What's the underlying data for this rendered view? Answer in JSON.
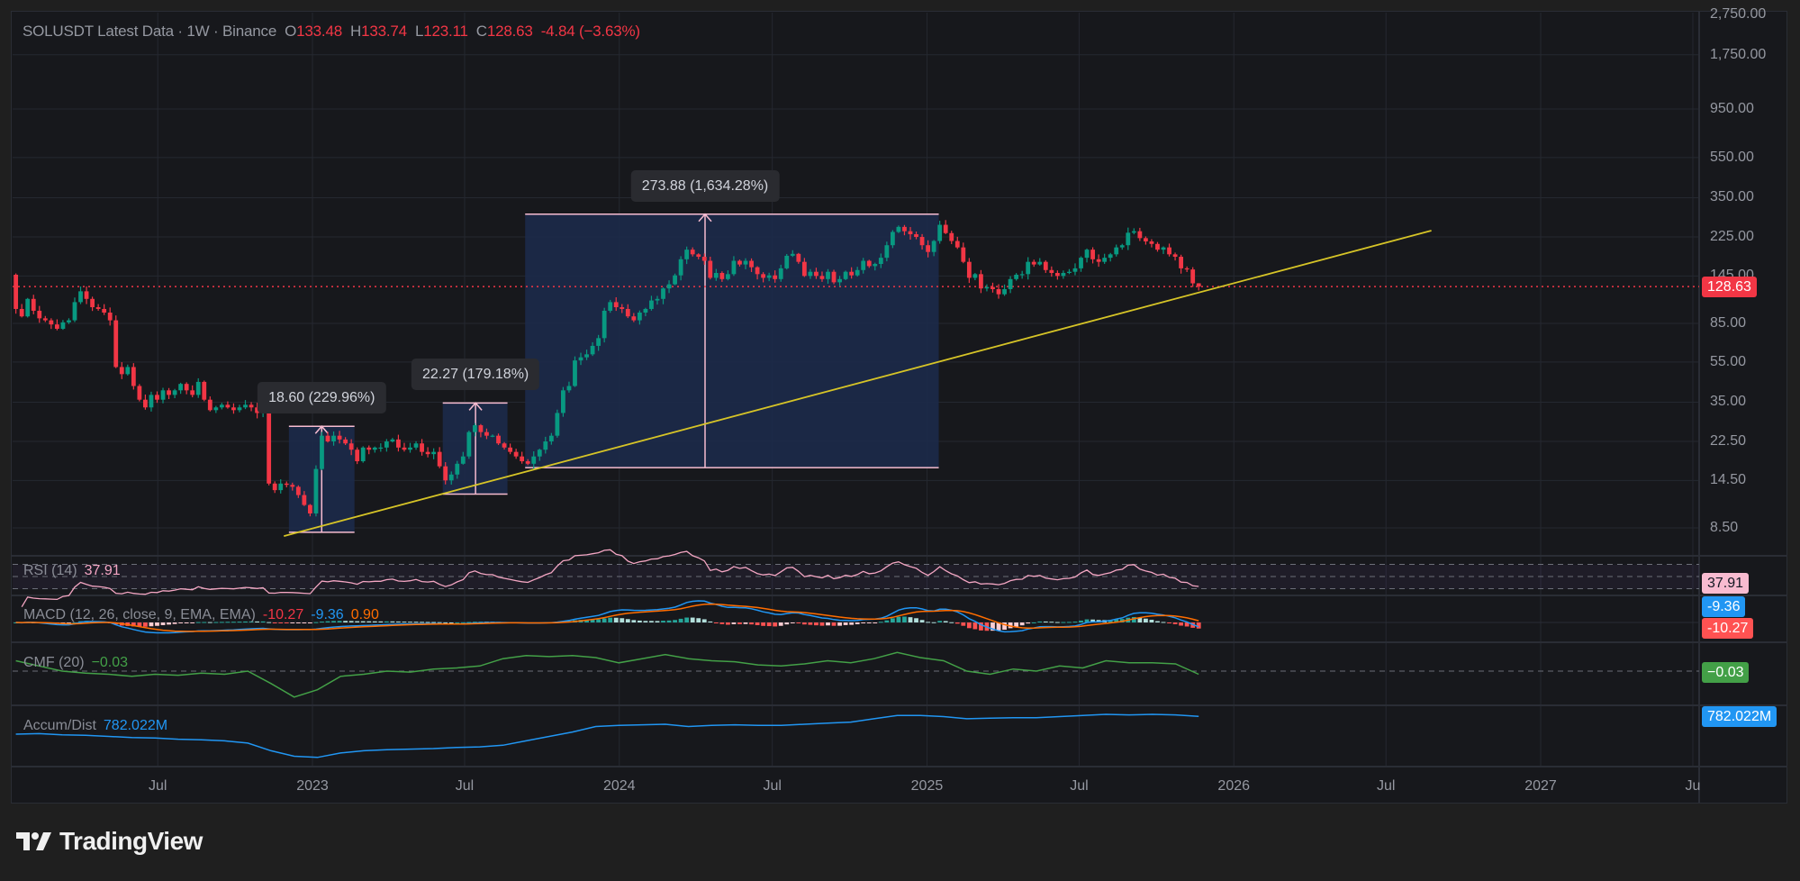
{
  "header": {
    "symbol": "SOLUSDT",
    "title": "Latest Data",
    "sep": "·",
    "interval": "1W",
    "exchange": "Binance",
    "open_label": "O",
    "open": "133.48",
    "high_label": "H",
    "high": "133.74",
    "low_label": "L",
    "low": "123.11",
    "close_label": "C",
    "close": "128.63",
    "change": "-4.84 (−3.63%)"
  },
  "colors": {
    "up": "#089981",
    "down": "#f23645",
    "grid": "#252830",
    "measure_fill": "#1c2a4a",
    "measure_line": "#f7bcd0",
    "trendline": "#d6c427",
    "rsi": "#f4a6c3",
    "macd": "#2196f3",
    "signal": "#ff6d00",
    "cmf": "#43a047",
    "accum_dist": "#2196f3"
  },
  "price_axis": {
    "scale": "log",
    "ticks": [
      {
        "label": "2,750.00",
        "value": 2750
      },
      {
        "label": "1,750.00",
        "value": 1750
      },
      {
        "label": "950.00",
        "value": 950
      },
      {
        "label": "550.00",
        "value": 550
      },
      {
        "label": "350.00",
        "value": 350
      },
      {
        "label": "225.00",
        "value": 225
      },
      {
        "label": "145.00",
        "value": 145
      },
      {
        "label": "85.00",
        "value": 85
      },
      {
        "label": "55.00",
        "value": 55
      },
      {
        "label": "35.00",
        "value": 35
      },
      {
        "label": "22.50",
        "value": 22.5
      },
      {
        "label": "14.50",
        "value": 14.5
      },
      {
        "label": "8.50",
        "value": 8.5
      }
    ],
    "last_price": "128.63"
  },
  "time_axis": {
    "ticks": [
      {
        "label": "Jul",
        "date": "2022-07-01"
      },
      {
        "label": "2023",
        "date": "2023-01-01"
      },
      {
        "label": "Jul",
        "date": "2023-07-01"
      },
      {
        "label": "2024",
        "date": "2024-01-01"
      },
      {
        "label": "Jul",
        "date": "2024-07-01"
      },
      {
        "label": "2025",
        "date": "2025-01-01"
      },
      {
        "label": "Jul",
        "date": "2025-07-01"
      },
      {
        "label": "2026",
        "date": "2026-01-01"
      },
      {
        "label": "Jul",
        "date": "2026-07-01"
      },
      {
        "label": "2027",
        "date": "2027-01-01"
      },
      {
        "label": "Ju",
        "date": "2027-07-01"
      }
    ]
  },
  "indicators": {
    "rsi": {
      "label": "RSI (14)",
      "value": "37.91",
      "axis_value": "37.91",
      "levels": [
        70,
        50,
        30
      ]
    },
    "macd": {
      "label": "MACD (12, 26, close, 9, EMA, EMA)",
      "v1": "-10.27",
      "v2": "-9.36",
      "v3": "0.90",
      "axis_macd": "-9.36",
      "axis_hist": "-10.27"
    },
    "cmf": {
      "label": "CMF (20)",
      "value": "−0.03",
      "axis_value": "−0.03"
    },
    "ad": {
      "label": "Accum/Dist",
      "value": "782.022M",
      "axis_value": "782.022M"
    }
  },
  "logo": {
    "text": "TradingView"
  },
  "chart_data": {
    "type": "candlestick",
    "title": "SOLUSDT Latest Data · 1W · Binance",
    "x_start": "2022-01-10",
    "interval": "1W",
    "y_scale": "log",
    "ylim": [
      7.5,
      2900
    ],
    "grid": true,
    "first_open": 147,
    "closes": [
      100,
      92,
      112,
      98,
      90,
      88,
      84,
      80,
      86,
      88,
      108,
      122,
      112,
      102,
      100,
      96,
      88,
      52,
      48,
      52,
      42,
      36,
      33,
      38,
      36,
      40,
      38,
      40,
      43,
      40,
      38,
      44,
      36,
      32,
      33,
      34,
      33,
      32,
      33,
      34,
      33,
      31,
      32,
      14,
      13,
      14,
      13.8,
      13.5,
      12.3,
      11,
      10,
      16.5,
      24,
      22.5,
      24,
      23,
      22,
      20.5,
      18,
      21,
      20.5,
      21,
      21,
      22.5,
      23,
      21,
      20.5,
      21,
      22,
      20,
      19.5,
      20,
      17,
      14.5,
      15.5,
      17.5,
      19,
      25,
      27,
      25,
      24,
      24,
      22,
      21,
      20,
      19,
      18,
      17.5,
      19,
      20.5,
      22.5,
      24,
      31,
      40,
      42,
      56,
      58,
      60,
      66,
      72,
      98,
      108,
      102,
      100,
      92,
      88,
      96,
      100,
      110,
      112,
      126,
      132,
      146,
      175,
      195,
      185,
      180,
      172,
      142,
      150,
      140,
      148,
      172,
      165,
      172,
      160,
      148,
      142,
      146,
      140,
      158,
      182,
      186,
      170,
      145,
      152,
      145,
      140,
      152,
      135,
      140,
      152,
      146,
      155,
      172,
      162,
      166,
      178,
      205,
      238,
      252,
      240,
      232,
      225,
      205,
      190,
      215,
      258,
      235,
      215,
      200,
      170,
      142,
      148,
      126,
      128,
      125,
      118,
      125,
      140,
      147,
      148,
      170,
      165,
      170,
      155,
      150,
      145,
      150,
      152,
      158,
      178,
      195,
      175,
      170,
      178,
      185,
      200,
      205,
      236,
      240,
      222,
      214,
      208,
      195,
      200,
      185,
      180,
      158,
      156,
      133.48,
      128.63
    ],
    "last_candle": {
      "open": 133.48,
      "high": 133.74,
      "low": 123.11,
      "close": 128.63
    },
    "drawings": {
      "trendline": {
        "from": {
          "date": "2022-11-28",
          "price": 7.75
        },
        "to": {
          "date": "2026-08-24",
          "price": 241.6
        }
      },
      "measures": [
        {
          "from": "2022-12-04",
          "to": "2023-02-20",
          "arrow_date": "2023-01-12",
          "low": 8.09,
          "high": 26.69,
          "label": "18.60 (229.96%)"
        },
        {
          "from": "2023-06-05",
          "to": "2023-08-21",
          "arrow_date": "2023-07-14",
          "low": 12.43,
          "high": 34.7,
          "label": "22.27 (179.18%)"
        },
        {
          "from": "2023-09-11",
          "to": "2025-01-15",
          "arrow_date": "2024-04-12",
          "low": 16.76,
          "high": 290.64,
          "label": "273.88 (1,634.28%)"
        }
      ]
    },
    "cmf": [
      0.1,
      0.05,
      0.0,
      -0.02,
      -0.03,
      -0.05,
      -0.03,
      -0.04,
      -0.02,
      -0.03,
      0.0,
      -0.12,
      -0.25,
      -0.18,
      -0.05,
      -0.03,
      0.0,
      -0.01,
      0.02,
      0.03,
      0.05,
      0.12,
      0.15,
      0.14,
      0.15,
      0.13,
      0.08,
      0.12,
      0.16,
      0.12,
      0.1,
      0.09,
      0.06,
      0.05,
      0.07,
      0.1,
      0.08,
      0.12,
      0.18,
      0.13,
      0.1,
      0.0,
      -0.03,
      0.02,
      0.0,
      0.05,
      0.03,
      0.1,
      0.08,
      0.08,
      0.07,
      -0.03
    ],
    "accum_dist_millions": [
      620,
      625,
      615,
      610,
      600,
      590,
      585,
      575,
      570,
      560,
      540,
      470,
      420,
      410,
      450,
      470,
      480,
      485,
      490,
      500,
      505,
      520,
      560,
      600,
      640,
      690,
      700,
      705,
      710,
      690,
      700,
      705,
      700,
      700,
      710,
      720,
      730,
      760,
      790,
      790,
      780,
      760,
      765,
      770,
      770,
      780,
      790,
      800,
      795,
      800,
      795,
      782.022
    ]
  }
}
